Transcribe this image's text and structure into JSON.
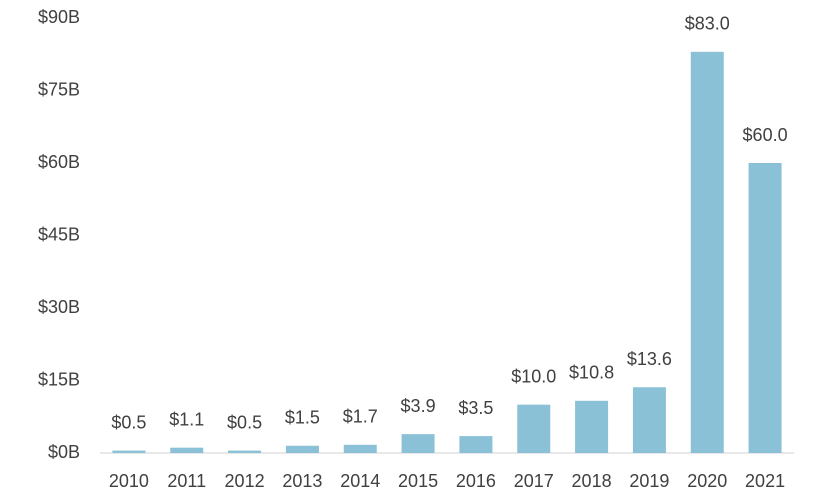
{
  "chart_data": {
    "type": "bar",
    "categories": [
      "2010",
      "2011",
      "2012",
      "2013",
      "2014",
      "2015",
      "2016",
      "2017",
      "2018",
      "2019",
      "2020",
      "2021"
    ],
    "values": [
      0.5,
      1.1,
      0.5,
      1.5,
      1.7,
      3.9,
      3.5,
      10.0,
      10.8,
      13.6,
      83.0,
      60.0
    ],
    "value_labels": [
      "$0.5",
      "$1.1",
      "$0.5",
      "$1.5",
      "$1.7",
      "$3.9",
      "$3.5",
      "$10.0",
      "$10.8",
      "$13.6",
      "$83.0",
      "$60.0"
    ],
    "color": "#8ac1d6",
    "ylim": [
      0,
      90
    ],
    "yticks": [
      {
        "value": 0,
        "label": "$0B"
      },
      {
        "value": 15,
        "label": "$15B"
      },
      {
        "value": 30,
        "label": "$30B"
      },
      {
        "value": 45,
        "label": "$45B"
      },
      {
        "value": 60,
        "label": "$60B"
      },
      {
        "value": 75,
        "label": "$75B"
      },
      {
        "value": 90,
        "label": "$90B"
      }
    ],
    "grid": false
  }
}
